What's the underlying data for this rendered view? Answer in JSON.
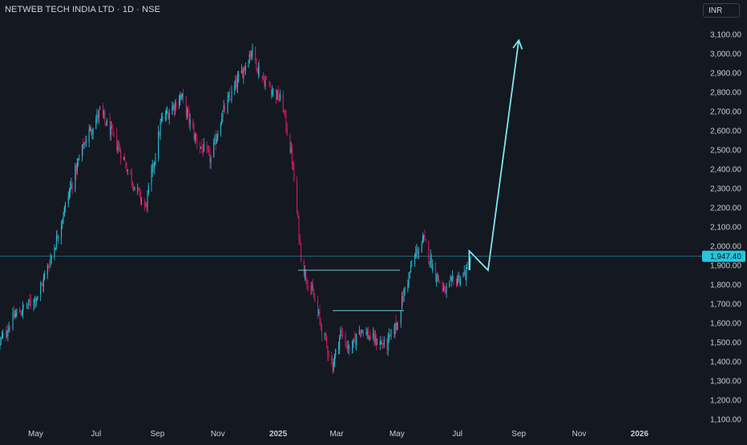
{
  "header": {
    "symbol_title": "NETWEB TECH INDIA LTD · 1D · NSE",
    "currency": "INR"
  },
  "colors": {
    "background": "#141821",
    "up": "#26c6da",
    "down": "#d81b60",
    "annotation": "#7ee8f0",
    "price_line": "#2a9ab0",
    "price_label_bg": "#26c6da",
    "axis_text": "#c8ccd6"
  },
  "chart_data": {
    "type": "candlestick",
    "title": "NETWEB TECH INDIA LTD · 1D · NSE",
    "currency": "INR",
    "y_ticks": [
      "3,100.00",
      "3,000.00",
      "2,900.00",
      "2,800.00",
      "2,700.00",
      "2,600.00",
      "2,500.00",
      "2,400.00",
      "2,300.00",
      "2,200.00",
      "2,100.00",
      "2,000.00",
      "1,900.00",
      "1,800.00",
      "1,700.00",
      "1,600.00",
      "1,500.00",
      "1,400.00",
      "1,300.00",
      "1,200.00",
      "1,100.00"
    ],
    "y_tick_values": [
      3100,
      3000,
      2900,
      2800,
      2700,
      2600,
      2500,
      2400,
      2300,
      2200,
      2100,
      2000,
      1900,
      1800,
      1700,
      1600,
      1500,
      1400,
      1300,
      1200,
      1100
    ],
    "x_ticks": [
      {
        "label": "May",
        "date": "2024-05-01",
        "bold": false
      },
      {
        "label": "Jul",
        "date": "2024-07-01",
        "bold": false
      },
      {
        "label": "Sep",
        "date": "2024-09-01",
        "bold": false
      },
      {
        "label": "Nov",
        "date": "2024-11-01",
        "bold": false
      },
      {
        "label": "2025",
        "date": "2025-01-01",
        "bold": true
      },
      {
        "label": "Mar",
        "date": "2025-03-01",
        "bold": false
      },
      {
        "label": "May",
        "date": "2025-05-01",
        "bold": false
      },
      {
        "label": "Jul",
        "date": "2025-07-01",
        "bold": false
      },
      {
        "label": "Sep",
        "date": "2025-09-01",
        "bold": false
      },
      {
        "label": "Nov",
        "date": "2025-11-01",
        "bold": false
      },
      {
        "label": "2026",
        "date": "2026-01-01",
        "bold": true
      }
    ],
    "ylim": [
      1050,
      3150
    ],
    "xlim": [
      "2024-03-26",
      "2026-03-02"
    ],
    "last_price": 1947.4,
    "last_price_label": "1,947.40",
    "price_path": [
      [
        "2024-03-26",
        1500
      ],
      [
        "2024-04-10",
        1640
      ],
      [
        "2024-04-25",
        1700
      ],
      [
        "2024-05-05",
        1760
      ],
      [
        "2024-05-20",
        2000
      ],
      [
        "2024-06-05",
        2300
      ],
      [
        "2024-06-20",
        2550
      ],
      [
        "2024-07-05",
        2700
      ],
      [
        "2024-07-25",
        2500
      ],
      [
        "2024-08-10",
        2300
      ],
      [
        "2024-08-20",
        2200
      ],
      [
        "2024-09-05",
        2650
      ],
      [
        "2024-09-25",
        2780
      ],
      [
        "2024-10-10",
        2550
      ],
      [
        "2024-10-25",
        2450
      ],
      [
        "2024-11-05",
        2680
      ],
      [
        "2024-11-25",
        2900
      ],
      [
        "2024-12-05",
        3020
      ],
      [
        "2024-12-15",
        2880
      ],
      [
        "2024-12-28",
        2800
      ],
      [
        "2025-01-05",
        2750
      ],
      [
        "2025-01-15",
        2450
      ],
      [
        "2025-01-25",
        1900
      ],
      [
        "2025-02-05",
        1750
      ],
      [
        "2025-02-15",
        1550
      ],
      [
        "2025-02-25",
        1380
      ],
      [
        "2025-03-05",
        1550
      ],
      [
        "2025-03-15",
        1450
      ],
      [
        "2025-03-25",
        1580
      ],
      [
        "2025-04-05",
        1520
      ],
      [
        "2025-04-20",
        1480
      ],
      [
        "2025-05-01",
        1600
      ],
      [
        "2025-05-10",
        1800
      ],
      [
        "2025-05-20",
        1960
      ],
      [
        "2025-05-28",
        2030
      ],
      [
        "2025-06-08",
        1870
      ],
      [
        "2025-06-18",
        1760
      ],
      [
        "2025-06-28",
        1820
      ],
      [
        "2025-07-10",
        1860
      ],
      [
        "2025-07-15",
        1930
      ]
    ],
    "annotations": {
      "resistance_lines": [
        {
          "from": "2025-01-21",
          "to": "2025-05-04",
          "value": 1875
        },
        {
          "from": "2025-02-25",
          "to": "2025-05-08",
          "value": 1665
        }
      ],
      "projection_path": [
        [
          "2025-07-13",
          1875
        ],
        [
          "2025-07-13",
          1975
        ],
        [
          "2025-08-01",
          1875
        ],
        [
          "2025-09-01",
          3070
        ]
      ]
    }
  }
}
